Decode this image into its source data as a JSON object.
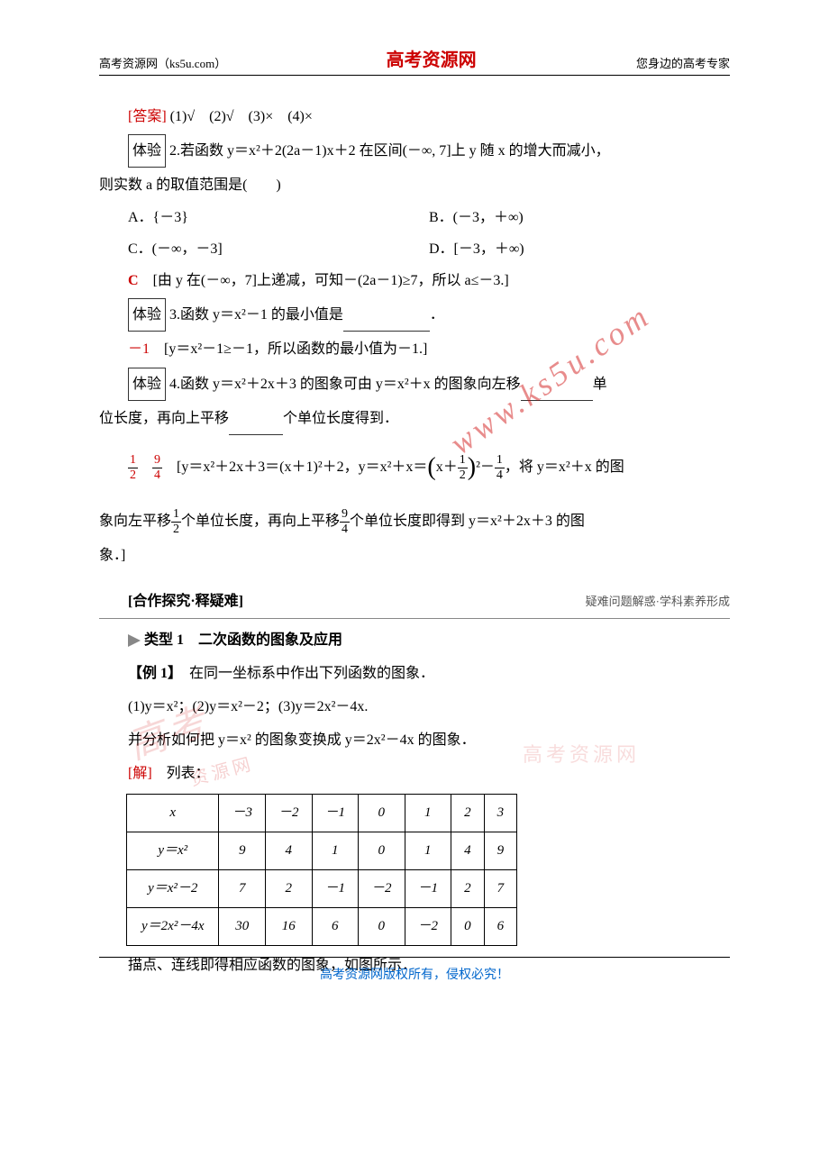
{
  "colors": {
    "brand_red": "#cc0000",
    "link_blue": "#0066cc",
    "text": "#000000",
    "border": "#000000",
    "gray": "#888888"
  },
  "header": {
    "left": "高考资源网（ks5u.com）",
    "center": "高考资源网",
    "right": "您身边的高考专家"
  },
  "answer": {
    "label": "[答案]",
    "text": " (1)√　(2)√　(3)×　(4)×"
  },
  "q2": {
    "label": "体验",
    "num": "2.",
    "text_a": "若函数 y＝x²＋2(2a－1)x＋2 在区间(－∞, 7]上 y 随 x 的增大而减小，",
    "text_b": "则实数 a 的取值范围是(　　)",
    "optA": "A．{－3}",
    "optB": "B．(－3，＋∞)",
    "optC": "C．(－∞，－3]",
    "optD": "D．[－3，＋∞)",
    "answer_letter": "C",
    "answer_explain": "[由 y 在(－∞，7]上递减，可知－(2a－1)≥7，所以 a≤－3.]"
  },
  "q3": {
    "label": "体验",
    "num": "3.",
    "text": "函数 y＝x²－1 的最小值是",
    "blank": "　　　　",
    "tail": "．",
    "answer": "－1",
    "explain": "[y＝x²－1≥－1，所以函数的最小值为－1.]"
  },
  "q4": {
    "label": "体验",
    "num": "4.",
    "text_a": "函数 y＝x²＋2x＋3 的图象可由 y＝x²＋x 的图象向左移",
    "blank1": "　　　",
    "text_b": "单",
    "text_c": "位长度，再向上平移",
    "blank2": "　　　",
    "text_d": "个单位长度得到．",
    "frac1_num": "1",
    "frac1_den": "2",
    "frac2_num": "9",
    "frac2_den": "4",
    "explain_a": "[y＝x²＋2x＋3＝(x＋1)²＋2，y＝x²＋x＝",
    "explain_b": "x＋",
    "explain_c": "－",
    "explain_d": "，将 y＝x²＋x 的图",
    "explain_e": "象向左平移",
    "explain_f": "个单位长度，再向上平移",
    "explain_g": "个单位长度即得到 y＝x²＋2x＋3 的图",
    "explain_h": "象．]"
  },
  "section": {
    "title": "[合作探究·释疑难]",
    "sub": "疑难问题解惑·学科素养形成"
  },
  "type1": {
    "marker": "▶",
    "label": "类型 1　二次函数的图象及应用"
  },
  "example": {
    "label": "【例 1】",
    "text": "　在同一坐标系中作出下列函数的图象．",
    "funcs": "(1)y＝x²；(2)y＝x²－2；(3)y＝2x²－4x.",
    "analyze": "并分析如何把 y＝x² 的图象变换成 y＝2x²－4x 的图象．",
    "solution_label": "[解]",
    "solution_text": "　列表："
  },
  "table": {
    "rows": [
      [
        "x",
        "－3",
        "－2",
        "－1",
        "0",
        "1",
        "2",
        "3"
      ],
      [
        "y＝x²",
        "9",
        "4",
        "1",
        "0",
        "1",
        "4",
        "9"
      ],
      [
        "y＝x²－2",
        "7",
        "2",
        "－1",
        "－2",
        "－1",
        "2",
        "7"
      ],
      [
        "y＝2x²－4x",
        "30",
        "16",
        "6",
        "0",
        "－2",
        "0",
        "6"
      ]
    ],
    "col_widths": [
      "110px",
      "60px",
      "60px",
      "60px",
      "50px",
      "50px",
      "40px",
      "40px"
    ]
  },
  "after_table": "描点、连线即得相应函数的图象，如图所示．",
  "footer": "高考资源网版权所有，侵权必究！",
  "watermarks": {
    "url": "www.ks5u.com",
    "brand": "高考资源网"
  }
}
